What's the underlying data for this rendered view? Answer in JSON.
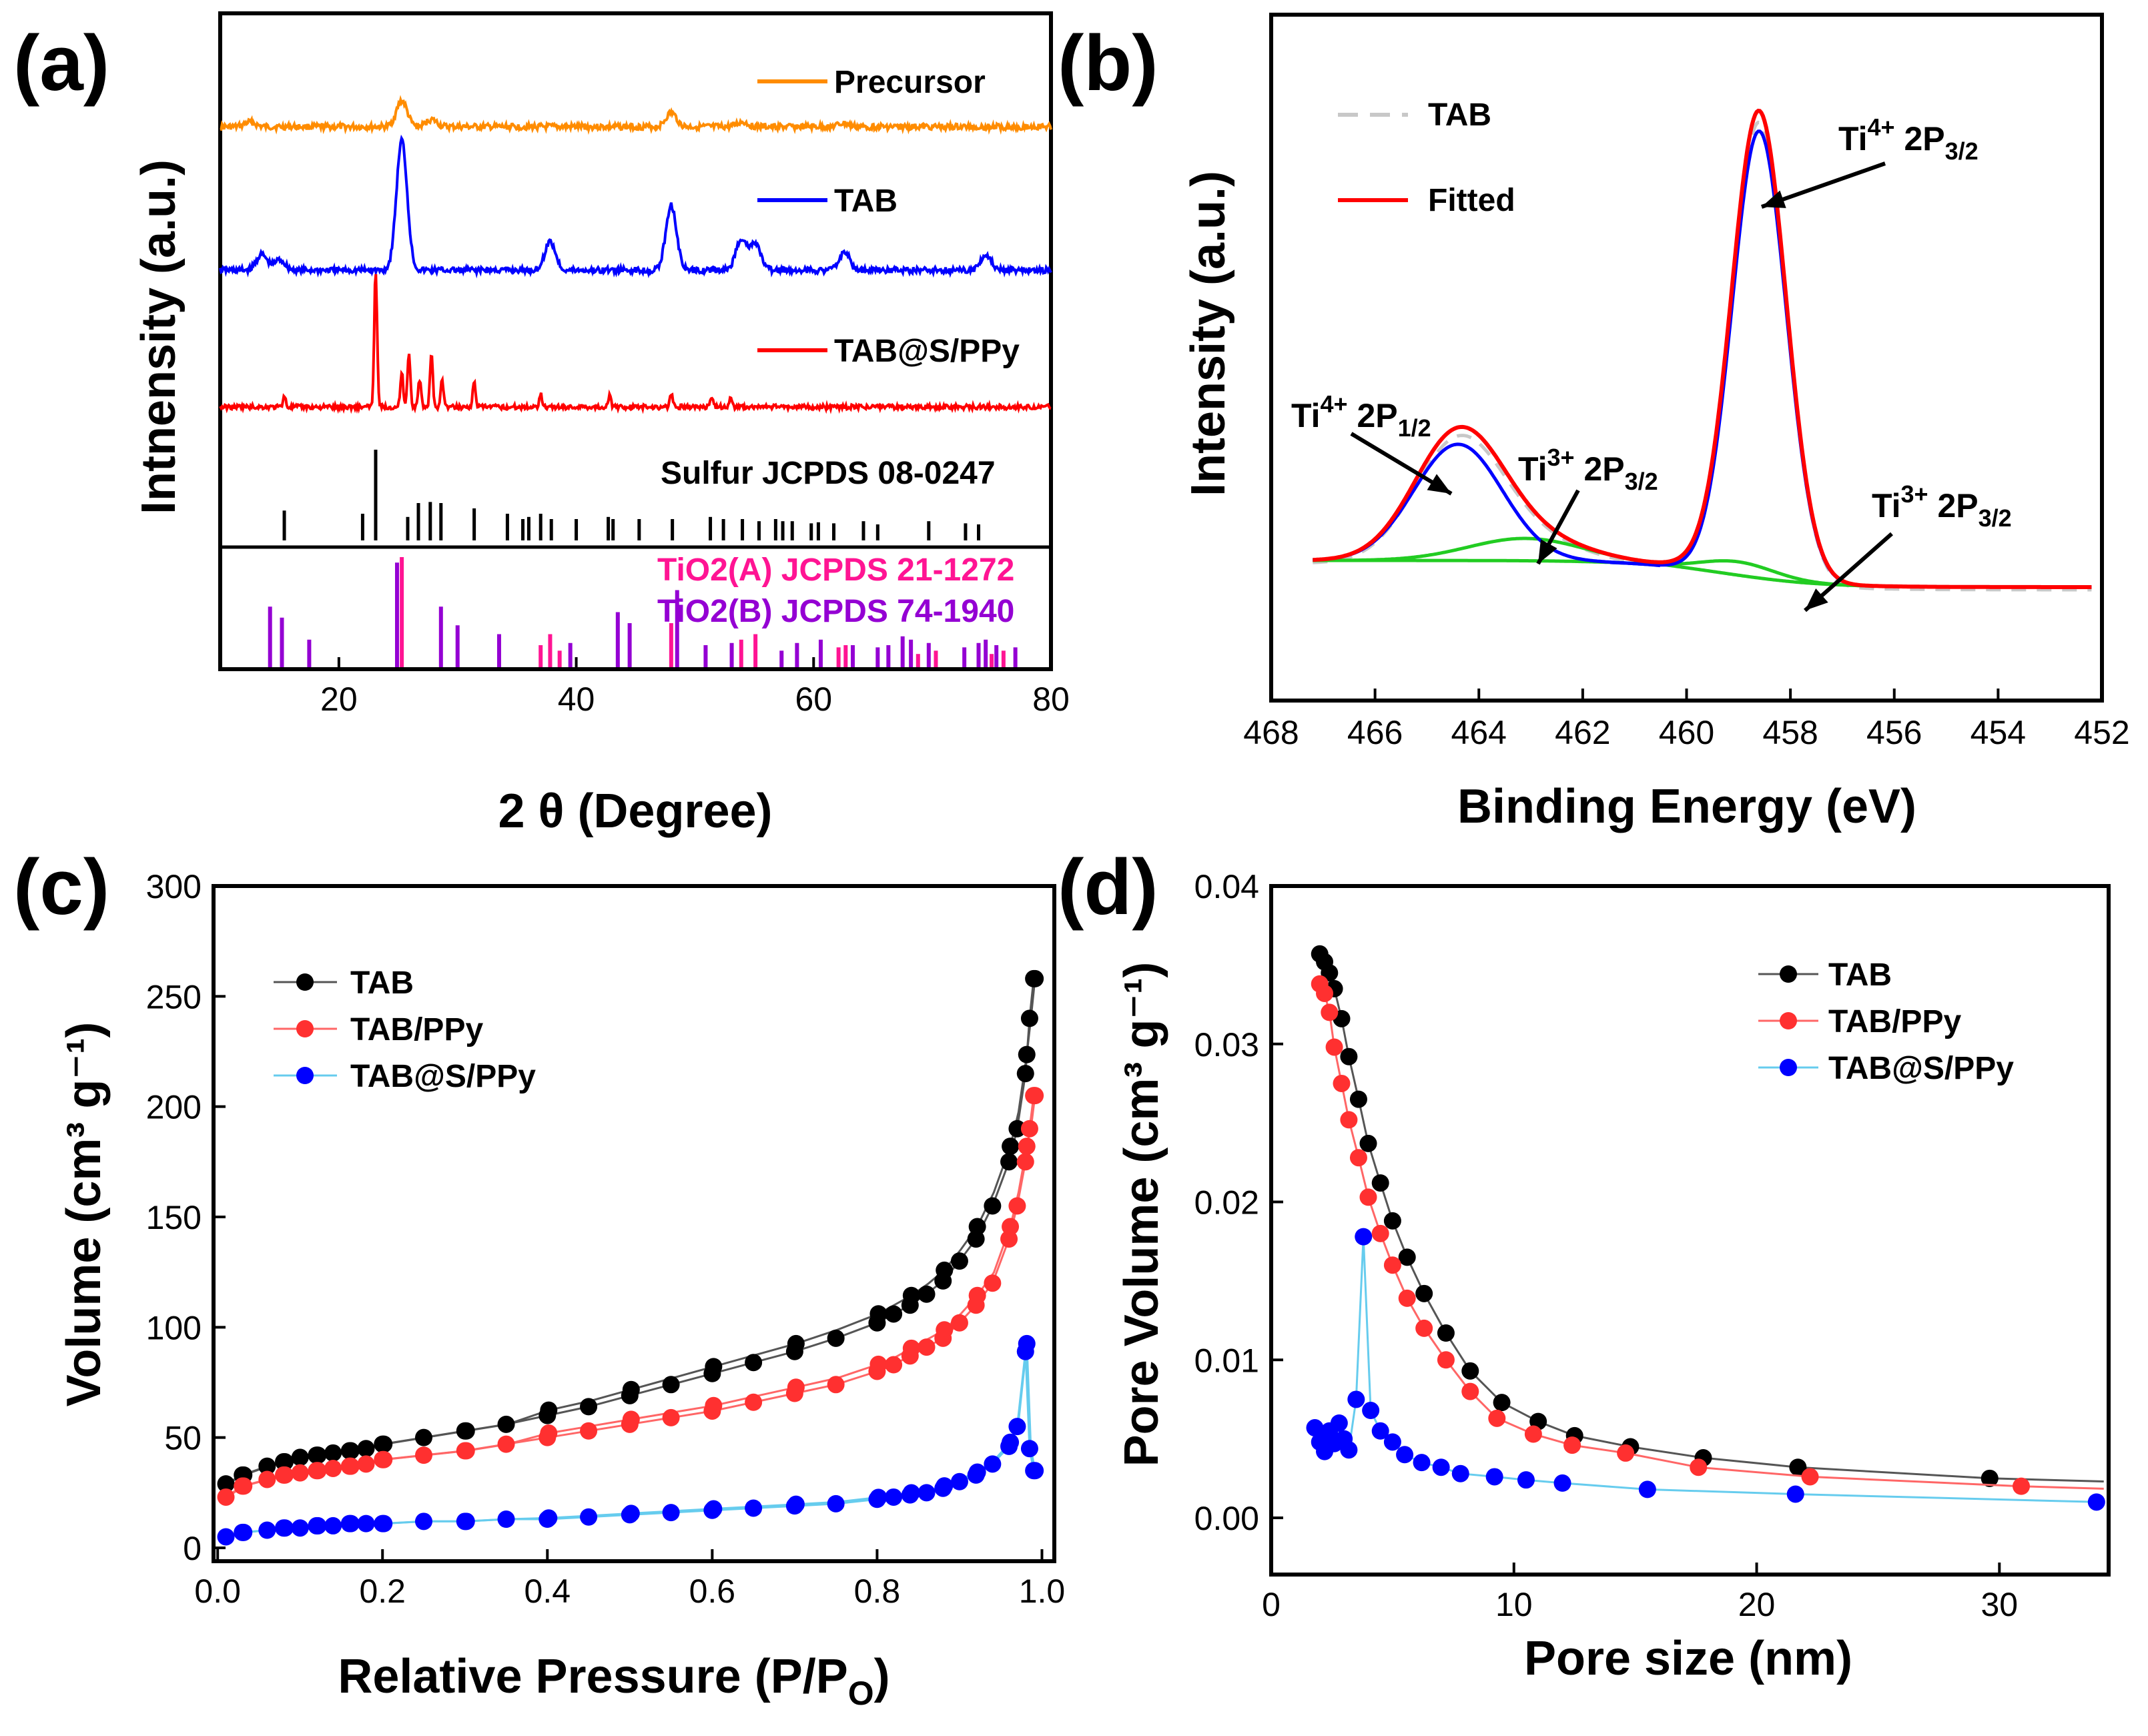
{
  "chart_data": [
    {
      "panel": "(a)",
      "type": "line",
      "title": "",
      "xlabel": "2 θ (Degree)",
      "ylabel": "Intnensity (a.u.)",
      "xlim": [
        10,
        80
      ],
      "xticks": [
        20,
        40,
        60,
        80
      ],
      "yticks_shown": false,
      "series": [
        {
          "name": "Precursor",
          "color": "#ff8c00",
          "peaks": [
            [
              12.5,
              0.12
            ],
            [
              25.3,
              0.65
            ],
            [
              27.8,
              0.18
            ],
            [
              48.0,
              0.35
            ],
            [
              54.0,
              0.12
            ],
            [
              62.5,
              0.08
            ]
          ]
        },
        {
          "name": "TAB",
          "color": "#0000ff",
          "peaks": [
            [
              13.5,
              0.12
            ],
            [
              15.0,
              0.08
            ],
            [
              25.3,
              1.0
            ],
            [
              37.8,
              0.22
            ],
            [
              48.0,
              0.5
            ],
            [
              53.9,
              0.24
            ],
            [
              55.1,
              0.2
            ],
            [
              62.6,
              0.14
            ],
            [
              74.5,
              0.12
            ]
          ]
        },
        {
          "name": "TAB@S/PPy",
          "color": "#ff0000",
          "peaks": [
            [
              15.4,
              0.08
            ],
            [
              23.1,
              1.0
            ],
            [
              25.3,
              0.25
            ],
            [
              25.9,
              0.4
            ],
            [
              26.8,
              0.2
            ],
            [
              27.8,
              0.38
            ],
            [
              28.7,
              0.2
            ],
            [
              31.4,
              0.18
            ],
            [
              37.0,
              0.1
            ],
            [
              42.8,
              0.08
            ],
            [
              48.0,
              0.1
            ],
            [
              51.4,
              0.08
            ],
            [
              53.0,
              0.07
            ]
          ]
        }
      ],
      "reference_patterns": [
        {
          "name": "Sulfur   JCPDS 08-0247",
          "color": "#000000",
          "lines": [
            [
              15.4,
              0.28
            ],
            [
              22.0,
              0.25
            ],
            [
              23.1,
              0.85
            ],
            [
              25.8,
              0.22
            ],
            [
              26.7,
              0.35
            ],
            [
              27.7,
              0.36
            ],
            [
              28.6,
              0.35
            ],
            [
              31.4,
              0.3
            ],
            [
              34.2,
              0.25
            ],
            [
              35.5,
              0.2
            ],
            [
              36.0,
              0.22
            ],
            [
              37.0,
              0.25
            ],
            [
              37.9,
              0.2
            ],
            [
              40.0,
              0.2
            ],
            [
              42.7,
              0.22
            ],
            [
              43.1,
              0.2
            ],
            [
              45.3,
              0.2
            ],
            [
              48.1,
              0.2
            ],
            [
              51.3,
              0.22
            ],
            [
              52.4,
              0.2
            ],
            [
              54.0,
              0.2
            ],
            [
              55.4,
              0.18
            ],
            [
              56.8,
              0.2
            ],
            [
              57.4,
              0.18
            ],
            [
              58.2,
              0.18
            ],
            [
              59.8,
              0.16
            ],
            [
              60.4,
              0.17
            ],
            [
              61.7,
              0.16
            ],
            [
              64.2,
              0.18
            ],
            [
              65.4,
              0.15
            ],
            [
              69.7,
              0.18
            ],
            [
              72.8,
              0.16
            ],
            [
              73.9,
              0.15
            ]
          ]
        },
        {
          "name": "TiO2(A) JCPDS 21-1272",
          "color": "#ff1493",
          "lines": [
            [
              25.3,
              1.0
            ],
            [
              37.0,
              0.2
            ],
            [
              37.8,
              0.3
            ],
            [
              38.6,
              0.15
            ],
            [
              48.0,
              0.4
            ],
            [
              53.9,
              0.25
            ],
            [
              55.1,
              0.3
            ],
            [
              62.1,
              0.18
            ],
            [
              62.7,
              0.2
            ],
            [
              68.8,
              0.12
            ],
            [
              70.3,
              0.15
            ],
            [
              75.0,
              0.12
            ],
            [
              76.0,
              0.15
            ]
          ]
        },
        {
          "name": "TiO2(B) JCPDS 74-1940",
          "color": "#9400d3",
          "lines": [
            [
              14.2,
              0.55
            ],
            [
              15.2,
              0.45
            ],
            [
              17.5,
              0.25
            ],
            [
              24.9,
              0.95
            ],
            [
              28.6,
              0.55
            ],
            [
              30.0,
              0.38
            ],
            [
              33.5,
              0.3
            ],
            [
              39.5,
              0.22
            ],
            [
              43.5,
              0.5
            ],
            [
              44.5,
              0.4
            ],
            [
              48.5,
              0.7
            ],
            [
              50.9,
              0.2
            ],
            [
              53.1,
              0.22
            ],
            [
              57.3,
              0.15
            ],
            [
              58.6,
              0.22
            ],
            [
              60.6,
              0.25
            ],
            [
              63.3,
              0.2
            ],
            [
              65.4,
              0.18
            ],
            [
              66.3,
              0.2
            ],
            [
              67.5,
              0.28
            ],
            [
              68.2,
              0.25
            ],
            [
              69.7,
              0.22
            ],
            [
              72.7,
              0.18
            ],
            [
              73.9,
              0.22
            ],
            [
              74.5,
              0.25
            ],
            [
              75.4,
              0.2
            ],
            [
              77.0,
              0.18
            ]
          ]
        }
      ]
    },
    {
      "panel": "(b)",
      "type": "line",
      "title": "",
      "xlabel": "Binding Energy (eV)",
      "ylabel": "Intensity (a.u.)",
      "xlim": [
        468,
        452
      ],
      "xticks": [
        468,
        466,
        464,
        462,
        460,
        458,
        456,
        454,
        452
      ],
      "yticks_shown": false,
      "series": [
        {
          "name": "TAB",
          "color": "#c8c8c8",
          "style": "dashed"
        },
        {
          "name": "Fitted",
          "color": "#ff0000"
        },
        {
          "name": "Ti4+ 2p3/2 component",
          "color": "#0000ff",
          "center": 458.6,
          "height": 1.0
        },
        {
          "name": "Ti4+ 2p1/2 component",
          "color": "#0000ff",
          "center": 464.4,
          "height": 0.26
        },
        {
          "name": "Ti3+ 2p3/2 component (463.1)",
          "color": "#22cc22",
          "center": 463.1,
          "height": 0.05
        },
        {
          "name": "Ti3+ 2p3/2 component (459.0)",
          "color": "#22cc22",
          "center": 459.0,
          "height": 0.03
        }
      ],
      "annotations": [
        {
          "base": "Ti",
          "sup": "4+",
          "rest": " 2P",
          "sub": "3/2"
        },
        {
          "base": "Ti",
          "sup": "4+",
          "rest": " 2P",
          "sub": "1/2"
        },
        {
          "base": "Ti",
          "sup": "3+",
          "rest": " 2P",
          "sub": "3/2"
        },
        {
          "base": "Ti",
          "sup": "3+",
          "rest": " 2P",
          "sub": "3/2"
        }
      ]
    },
    {
      "panel": "(c)",
      "type": "scatter",
      "title": "",
      "xlabel": "Relative Pressure (P/P",
      "xlabel_sub": "O",
      "xlabel_close": ")",
      "ylabel": "Volume (cm³ g⁻¹)",
      "xlim": [
        0.0,
        1.0
      ],
      "ylim": [
        0,
        300
      ],
      "xticks": [
        "0.0",
        "0.2",
        "0.4",
        "0.6",
        "0.8",
        "1.0"
      ],
      "yticks": [
        "0",
        "50",
        "100",
        "150",
        "200",
        "250",
        "300"
      ],
      "x": [
        0.01,
        0.03,
        0.06,
        0.08,
        0.1,
        0.12,
        0.14,
        0.16,
        0.18,
        0.2,
        0.25,
        0.3,
        0.35,
        0.4,
        0.45,
        0.5,
        0.55,
        0.6,
        0.65,
        0.7,
        0.75,
        0.8,
        0.82,
        0.84,
        0.86,
        0.88,
        0.9,
        0.92,
        0.94,
        0.96,
        0.97,
        0.98,
        0.985,
        0.99
      ],
      "series": [
        {
          "name": "TAB",
          "color": "#000000",
          "line": "#555555",
          "values": [
            29,
            33,
            37,
            39,
            41,
            42,
            43,
            44,
            45,
            47,
            50,
            53,
            56,
            60,
            64,
            69,
            74,
            79,
            84,
            89,
            95,
            102,
            106,
            110,
            115,
            121,
            130,
            140,
            155,
            175,
            190,
            215,
            240,
            258
          ]
        },
        {
          "name": "TAB/PPy",
          "color": "#ff3030",
          "line": "#ff6666",
          "values": [
            23,
            28,
            31,
            33,
            34,
            35,
            36,
            37,
            38,
            40,
            42,
            44,
            47,
            50,
            53,
            56,
            59,
            62,
            66,
            70,
            74,
            80,
            83,
            87,
            91,
            95,
            102,
            110,
            120,
            140,
            155,
            175,
            190,
            205
          ]
        },
        {
          "name": "TAB@S/PPy",
          "color": "#0000ff",
          "line": "#66ccee",
          "values": [
            5,
            7,
            8,
            9,
            9,
            10,
            10,
            11,
            11,
            11,
            12,
            12,
            13,
            13,
            14,
            15,
            16,
            17,
            18,
            19,
            20,
            22,
            23,
            24,
            25,
            27,
            30,
            33,
            38,
            46,
            55,
            89,
            45,
            35
          ]
        }
      ]
    },
    {
      "panel": "(d)",
      "type": "scatter",
      "title": "",
      "xlabel": "Pore size (nm)",
      "ylabel": "Pore Volume (cm³ g⁻¹)",
      "xlim": [
        0,
        34.5
      ],
      "ylim": [
        -0.0015,
        0.04
      ],
      "xticks": [
        "0",
        "10",
        "20",
        "30"
      ],
      "yticks": [
        "0.00",
        "0.01",
        "0.02",
        "0.03",
        "0.04"
      ],
      "series": [
        {
          "name": "TAB",
          "color": "#000000",
          "line": "#555555",
          "x": [
            2.0,
            2.2,
            2.4,
            2.6,
            2.9,
            3.2,
            3.6,
            4.0,
            4.5,
            5.0,
            5.6,
            6.3,
            7.2,
            8.2,
            9.5,
            11.0,
            12.5,
            14.8,
            17.8,
            21.7,
            29.6
          ],
          "y": [
            0.0357,
            0.0352,
            0.0345,
            0.0335,
            0.0316,
            0.0292,
            0.0265,
            0.0237,
            0.0212,
            0.0188,
            0.0165,
            0.0142,
            0.0117,
            0.0093,
            0.0073,
            0.0061,
            0.0052,
            0.0045,
            0.0038,
            0.0032,
            0.0025
          ]
        },
        {
          "name": "TAB/PPy",
          "color": "#ff3030",
          "line": "#ff6666",
          "x": [
            2.0,
            2.2,
            2.4,
            2.6,
            2.9,
            3.2,
            3.6,
            4.0,
            4.5,
            5.0,
            5.6,
            6.3,
            7.2,
            8.2,
            9.3,
            10.8,
            12.4,
            14.6,
            17.6,
            22.2,
            30.9
          ],
          "y": [
            0.0338,
            0.0332,
            0.032,
            0.0298,
            0.0275,
            0.0252,
            0.0228,
            0.0203,
            0.018,
            0.016,
            0.0139,
            0.012,
            0.01,
            0.008,
            0.0063,
            0.0053,
            0.0046,
            0.0041,
            0.0032,
            0.0026,
            0.002
          ]
        },
        {
          "name": "TAB@S/PPy",
          "color": "#0000ff",
          "line": "#66ccee",
          "x": [
            1.8,
            2.0,
            2.2,
            2.4,
            2.6,
            2.8,
            3.0,
            3.2,
            3.5,
            3.8,
            4.1,
            4.5,
            5.0,
            5.5,
            6.2,
            7.0,
            7.8,
            9.2,
            10.5,
            12.0,
            15.5,
            21.6,
            34.0
          ],
          "y": [
            0.0057,
            0.0048,
            0.0042,
            0.0055,
            0.0047,
            0.006,
            0.005,
            0.0043,
            0.0075,
            0.0178,
            0.0068,
            0.0055,
            0.0048,
            0.004,
            0.0035,
            0.0032,
            0.0028,
            0.0026,
            0.0024,
            0.0022,
            0.0018,
            0.0015,
            0.001
          ]
        }
      ]
    }
  ],
  "labels": {
    "a": "(a)",
    "b": "(b)",
    "c": "(c)",
    "d": "(d)",
    "a_ylabel": "Intnensity (a.u.)",
    "a_xlabel": "2 θ (Degree)",
    "b_ylabel": "Intensity (a.u.)",
    "b_xlabel": "Binding Energy (eV)",
    "c_ylabel": "Volume (cm³ g⁻¹)",
    "c_xlabel": "Relative Pressure (P/P",
    "c_xlabel_sub": "O",
    "c_xlabel_close": ")",
    "d_ylabel": "Pore Volume (cm³ g⁻¹)",
    "d_xlabel": "Pore size (nm)"
  }
}
